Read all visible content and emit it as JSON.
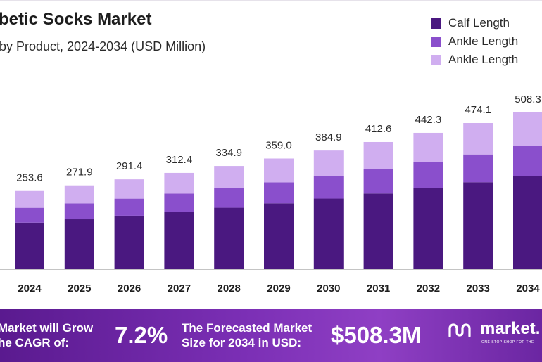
{
  "chart_data": {
    "type": "bar",
    "stacked": true,
    "title": "betic Socks Market",
    "subtitle": "by Product, 2024-2034 (USD Million)",
    "categories": [
      "2024",
      "2025",
      "2026",
      "2027",
      "2028",
      "2029",
      "2030",
      "2031",
      "2032",
      "2033",
      "2034"
    ],
    "totals": [
      253.6,
      271.9,
      291.4,
      312.4,
      334.9,
      359.0,
      384.9,
      412.6,
      442.3,
      474.1,
      508.3
    ],
    "total_labels": [
      "253.6",
      "271.9",
      "291.4",
      "312.4",
      "334.9",
      "359.0",
      "384.9",
      "412.6",
      "442.3",
      "474.1",
      "508.3"
    ],
    "series": [
      {
        "name": "Calf Length",
        "color": "#4a1880",
        "values": [
          150.9,
          161.8,
          173.4,
          185.9,
          199.3,
          213.6,
          229.0,
          245.5,
          263.2,
          282.1,
          302.4
        ]
      },
      {
        "name": "Ankle Length",
        "color": "#8a4fcc",
        "values": [
          48.2,
          51.7,
          55.4,
          59.4,
          63.6,
          68.2,
          73.1,
          78.4,
          84.0,
          90.1,
          96.6
        ]
      },
      {
        "name": "Ankle Length",
        "color": "#d0aef0",
        "values": [
          54.5,
          58.4,
          62.6,
          67.1,
          72.0,
          77.2,
          82.8,
          88.7,
          95.1,
          101.9,
          109.3
        ]
      }
    ],
    "ylim": [
      0,
      508.3
    ],
    "grid": false,
    "legend_position": "top-right"
  },
  "banner": {
    "cagr_text_line1": "Market will Grow",
    "cagr_text_line2": "he CAGR of:",
    "cagr_value": "7.2%",
    "forecast_text_line1": "The Forecasted Market",
    "forecast_text_line2": "Size for 2034 in USD:",
    "forecast_value": "$508.3M",
    "logo_text": "market.",
    "logo_tagline": "ONE STOP SHOP FOR THE"
  }
}
